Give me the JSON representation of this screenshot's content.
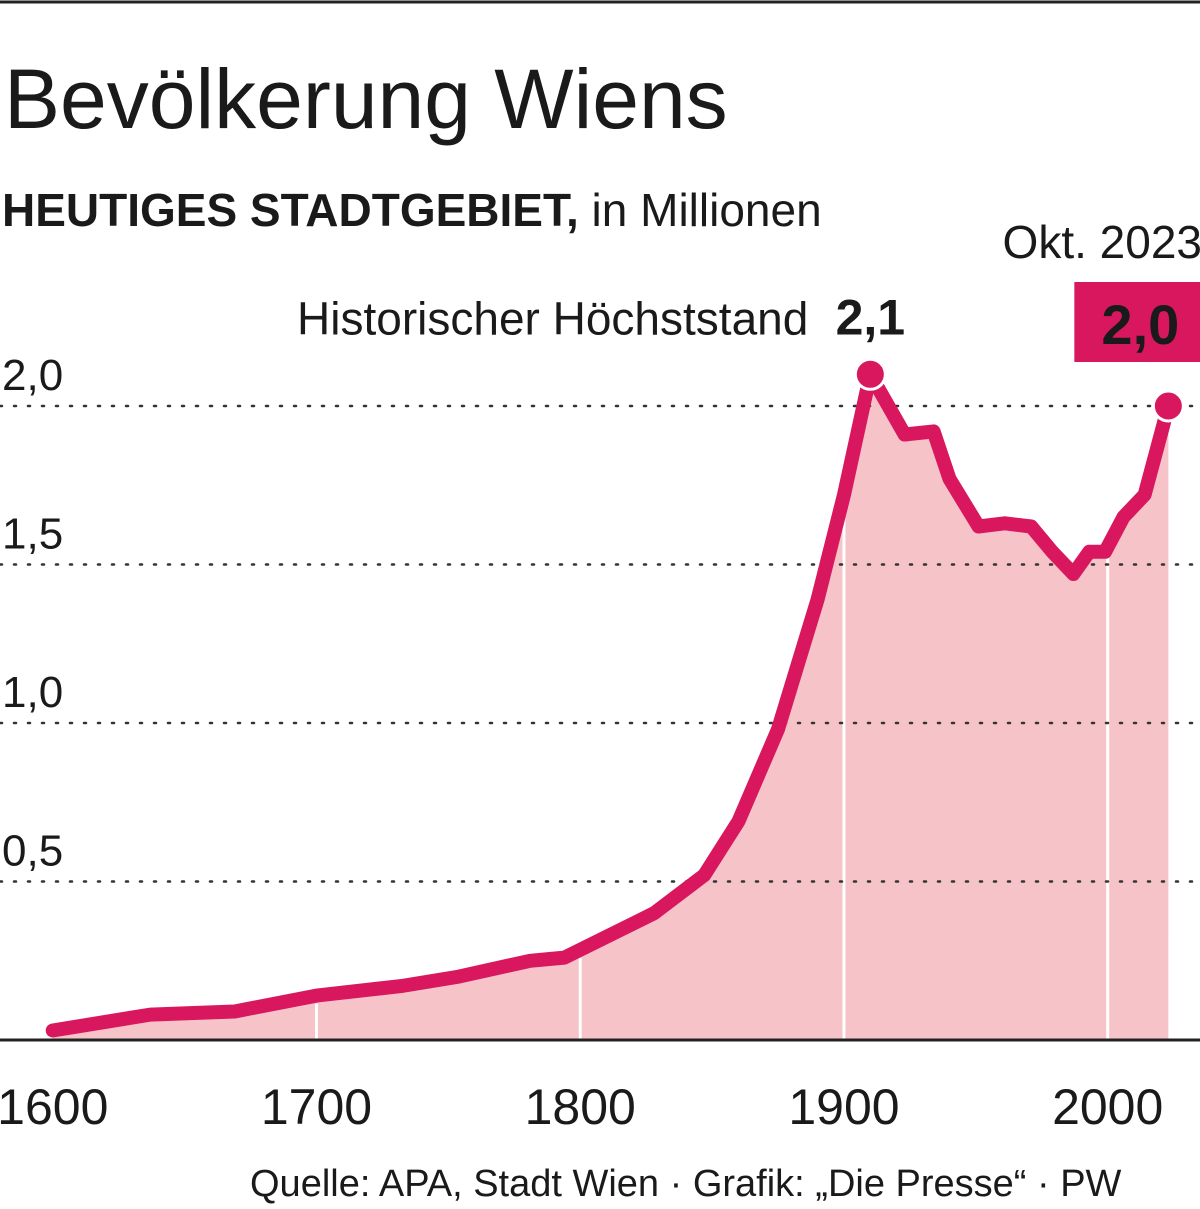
{
  "chart_data": {
    "type": "line",
    "title": "Bevölkerung Wiens",
    "subtitle_bold": "HEUTIGES STADTGEBIET,",
    "subtitle": "in Millionen",
    "x": [
      1600,
      1637,
      1669,
      1700,
      1732,
      1754,
      1781,
      1794,
      1828,
      1847,
      1860,
      1875,
      1890,
      1900,
      1910,
      1923,
      1934,
      1940,
      1951,
      1961,
      1971,
      1979,
      1987,
      1993,
      1999,
      2006,
      2014,
      2023
    ],
    "values": [
      0.03,
      0.08,
      0.09,
      0.14,
      0.17,
      0.2,
      0.25,
      0.26,
      0.4,
      0.52,
      0.69,
      0.98,
      1.39,
      1.72,
      2.1,
      1.91,
      1.92,
      1.77,
      1.62,
      1.63,
      1.62,
      1.54,
      1.47,
      1.54,
      1.54,
      1.65,
      1.72,
      2.0
    ],
    "value_labels": [
      null,
      null,
      null,
      null,
      null,
      null,
      null,
      null,
      null,
      null,
      null,
      null,
      null,
      null,
      "2,1",
      null,
      null,
      null,
      null,
      null,
      null,
      null,
      null,
      null,
      null,
      null,
      null,
      "2,0"
    ],
    "peak_note": "Historischer Höchststand",
    "end_note": "Okt. 2023",
    "color": "#d9175e",
    "area_color": "#f6c4c8",
    "xlim": [
      1580,
      2035
    ],
    "ylim": [
      0,
      2.0
    ],
    "xticks": [
      1600,
      1700,
      1800,
      1900,
      2000
    ],
    "yticks": [
      {
        "value": 0.5,
        "label": "0,5"
      },
      {
        "value": 1.0,
        "label": "1,0"
      },
      {
        "value": 1.5,
        "label": "1,5"
      },
      {
        "value": 2.0,
        "label": "2,0"
      }
    ],
    "grid": true,
    "source": "Quelle: APA, Stadt Wien · Grafik: „Die Presse“ · PW"
  }
}
